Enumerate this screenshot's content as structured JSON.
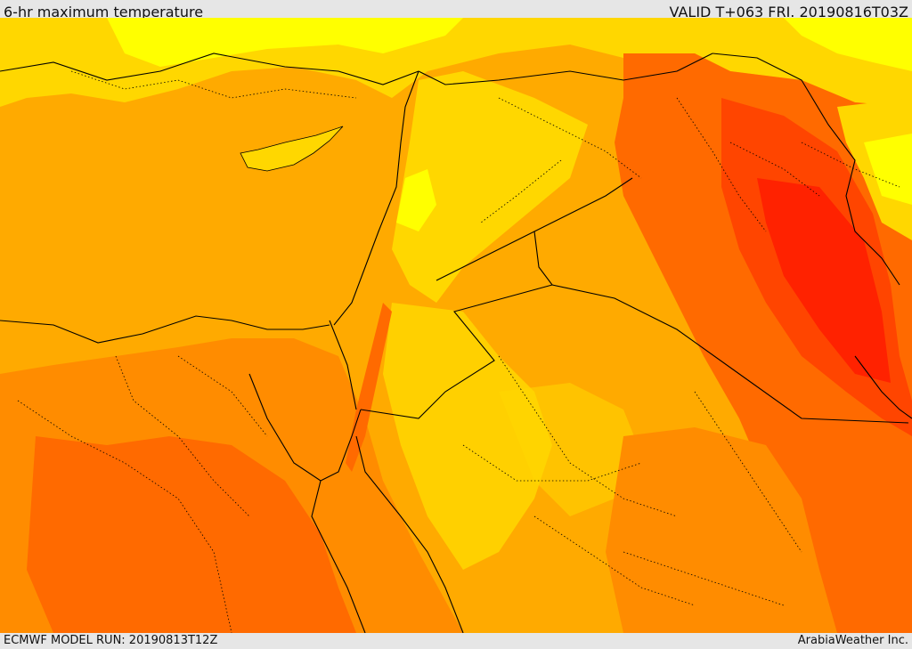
{
  "header": {
    "title": "6-hr maximum temperature",
    "valid": "VALID T+063 FRI. 20190816T03Z"
  },
  "footer": {
    "model_run": "ECMWF MODEL RUN: 20190813T12Z",
    "credit": "ArabiaWeather Inc."
  },
  "palette": {
    "light_yellow": "#ffff00",
    "yellow": "#ffd700",
    "light_orange": "#ffaa00",
    "orange": "#ff8c00",
    "dark_orange": "#ff6a00",
    "red_orange": "#ff4500",
    "red": "#ff2200",
    "borders": "#000000"
  }
}
